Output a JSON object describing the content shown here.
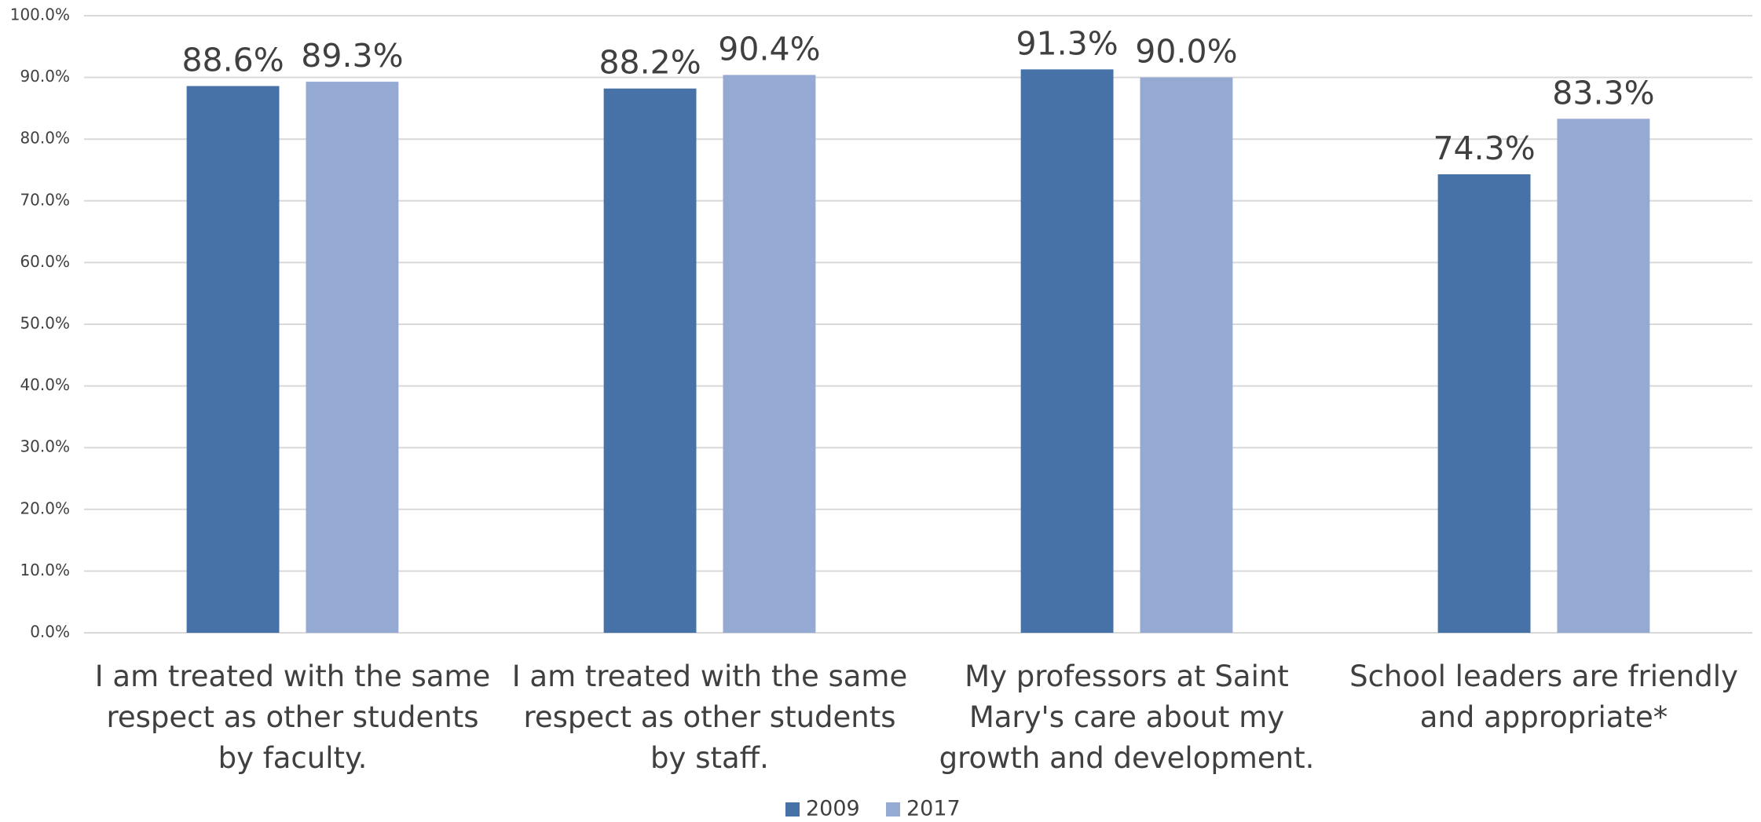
{
  "chart_data": {
    "type": "bar",
    "categories": [
      "I am treated with the same respect as other students by faculty.",
      "I am treated with the same respect as other students by staff.",
      "My professors at Saint Mary's care about my growth and development.",
      "School leaders are friendly and appropriate*"
    ],
    "series": [
      {
        "name": "2009",
        "color": "#4672a7",
        "values": [
          88.6,
          88.2,
          91.3,
          74.3
        ],
        "value_labels": [
          "88.6%",
          "88.2%",
          "91.3%",
          "74.3%"
        ]
      },
      {
        "name": "2017",
        "color": "#95aad2",
        "values": [
          89.3,
          90.4,
          90.0,
          83.3
        ],
        "value_labels": [
          "89.3%",
          "90.4%",
          "90.0%",
          "83.3%"
        ]
      }
    ],
    "ylim": [
      0,
      100
    ],
    "yticks": [
      {
        "value": 0,
        "label": "0.0%"
      },
      {
        "value": 10,
        "label": "10.0%"
      },
      {
        "value": 20,
        "label": "20.0%"
      },
      {
        "value": 30,
        "label": "30.0%"
      },
      {
        "value": 40,
        "label": "40.0%"
      },
      {
        "value": 50,
        "label": "50.0%"
      },
      {
        "value": 60,
        "label": "60.0%"
      },
      {
        "value": 70,
        "label": "70.0%"
      },
      {
        "value": 80,
        "label": "80.0%"
      },
      {
        "value": 90,
        "label": "90.0%"
      },
      {
        "value": 100,
        "label": "100.0%"
      }
    ],
    "grid": true,
    "legend": "bottom"
  }
}
